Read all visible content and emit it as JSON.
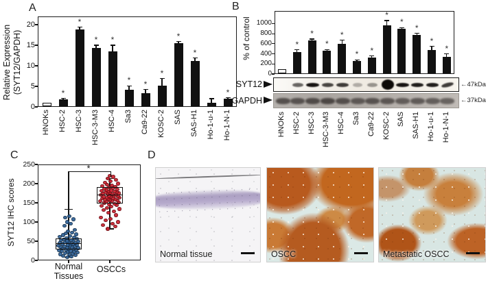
{
  "panels": {
    "a": "A",
    "b": "B",
    "c": "C",
    "d": "D"
  },
  "colors": {
    "bar": "#111111",
    "open_bar": "#ffffff",
    "normal_points": "#2e6096",
    "normal_points_border": "#16324f",
    "oscc_points": "#cc1f2d",
    "oscc_points_border": "#6e0e14"
  },
  "chart_data": [
    {
      "type": "bar",
      "panel": "A",
      "ylabel": "Relative Expression (SYT12/GAPDH)",
      "ylabel_line1": "Relative Expression",
      "ylabel_line2": "(SYT12/GAPDH)",
      "ylim": [
        0,
        22
      ],
      "yticks": [
        0,
        5,
        10,
        15,
        20
      ],
      "categories": [
        "HNOKs",
        "HSC-2",
        "HSC-3",
        "HSC-3-M3",
        "HSC-4",
        "Sa3",
        "Ca9-22",
        "KOSC-2",
        "SAS",
        "SAS-H1",
        "Ho-1-u-1",
        "Ho-1-N-1"
      ],
      "values": [
        1.0,
        1.9,
        18.9,
        14.3,
        13.5,
        4.1,
        3.3,
        5.1,
        15.5,
        11.2,
        1.0,
        2.0
      ],
      "errors": [
        0,
        0.15,
        0.5,
        0.7,
        1.5,
        1.0,
        0.9,
        1.8,
        0.4,
        0.7,
        1.0,
        0.2
      ],
      "significant": [
        false,
        true,
        true,
        true,
        true,
        true,
        true,
        true,
        true,
        true,
        false,
        true
      ],
      "sig_symbol": "*",
      "open_bar_index": 0,
      "grid": false
    },
    {
      "type": "bar",
      "panel": "B",
      "ylabel": "% of control",
      "ylim": [
        0,
        1250
      ],
      "yticks": [
        0,
        200,
        400,
        600,
        800,
        1000
      ],
      "categories": [
        "HNOKs",
        "HSC-2",
        "HSC-3",
        "HSC-3-M3",
        "HSC-4",
        "Sa3",
        "Ca9-22",
        "KOSC-2",
        "SAS",
        "SAS-H1",
        "Ho-1-u-1",
        "Ho-1-N-1"
      ],
      "values": [
        100,
        440,
        670,
        460,
        600,
        260,
        330,
        970,
        890,
        780,
        480,
        340
      ],
      "errors": [
        0,
        40,
        25,
        25,
        70,
        20,
        30,
        90,
        30,
        25,
        70,
        60
      ],
      "significant": [
        false,
        true,
        true,
        true,
        true,
        true,
        true,
        true,
        true,
        true,
        true,
        true
      ],
      "sig_symbol": "*",
      "open_bar_index": 0,
      "grid": false
    },
    {
      "type": "box",
      "panel": "C",
      "ylabel": "SYT12 IHC scores",
      "ylim": [
        0,
        250
      ],
      "yticks": [
        0,
        50,
        100,
        150,
        200,
        250
      ],
      "sig_symbol": "*",
      "groups": [
        {
          "label": "Normal Tissues",
          "label_line1": "Normal",
          "label_line2": "Tissues",
          "color": "#2e6096",
          "border": "#16324f",
          "box": {
            "q1": 28,
            "median": 44,
            "q3": 58,
            "whisker_low": 8,
            "whisker_high": 133
          },
          "points": [
            [
              -2,
              8
            ],
            [
              4,
              10
            ],
            [
              -8,
              12
            ],
            [
              10,
              14
            ],
            [
              1,
              15
            ],
            [
              -12,
              16
            ],
            [
              6,
              18
            ],
            [
              -5,
              19
            ],
            [
              13,
              20
            ],
            [
              -1,
              22
            ],
            [
              8,
              23
            ],
            [
              -10,
              24
            ],
            [
              3,
              25
            ],
            [
              -14,
              26
            ],
            [
              11,
              27
            ],
            [
              -4,
              28
            ],
            [
              7,
              29
            ],
            [
              0,
              30
            ],
            [
              -9,
              31
            ],
            [
              14,
              32
            ],
            [
              -2,
              33
            ],
            [
              5,
              34
            ],
            [
              -12,
              35
            ],
            [
              9,
              36
            ],
            [
              -6,
              37
            ],
            [
              2,
              38
            ],
            [
              -15,
              39
            ],
            [
              12,
              40
            ],
            [
              -1,
              41
            ],
            [
              6,
              42
            ],
            [
              -9,
              43
            ],
            [
              3,
              44
            ],
            [
              -13,
              45
            ],
            [
              10,
              46
            ],
            [
              0,
              47
            ],
            [
              -5,
              48
            ],
            [
              14,
              49
            ],
            [
              -2,
              50
            ],
            [
              7,
              51
            ],
            [
              -11,
              52
            ],
            [
              4,
              53
            ],
            [
              -7,
              55
            ],
            [
              12,
              56
            ],
            [
              -3,
              58
            ],
            [
              8,
              60
            ],
            [
              -13,
              62
            ],
            [
              2,
              64
            ],
            [
              -8,
              66
            ],
            [
              11,
              68
            ],
            [
              -4,
              70
            ],
            [
              5,
              73
            ],
            [
              -1,
              76
            ],
            [
              9,
              80
            ],
            [
              -6,
              90
            ],
            [
              3,
              95
            ],
            [
              -2,
              100
            ],
            [
              7,
              107
            ],
            [
              -5,
              112
            ],
            [
              1,
              115
            ]
          ]
        },
        {
          "label": "OSCCs",
          "label_line1": "OSCCs",
          "label_line2": "",
          "color": "#cc1f2d",
          "border": "#6e0e14",
          "box": {
            "q1": 148,
            "median": 170,
            "q3": 191,
            "whisker_low": 82,
            "whisker_high": 213
          },
          "points": [
            [
              -3,
              82
            ],
            [
              8,
              88
            ],
            [
              -10,
              92
            ],
            [
              4,
              96
            ],
            [
              12,
              100
            ],
            [
              -6,
              104
            ],
            [
              1,
              108
            ],
            [
              -13,
              112
            ],
            [
              9,
              118
            ],
            [
              -2,
              124
            ],
            [
              6,
              128
            ],
            [
              -9,
              131
            ],
            [
              14,
              134
            ],
            [
              -4,
              137
            ],
            [
              2,
              140
            ],
            [
              -12,
              142
            ],
            [
              10,
              144
            ],
            [
              -1,
              146
            ],
            [
              7,
              148
            ],
            [
              -8,
              150
            ],
            [
              13,
              151
            ],
            [
              -5,
              152
            ],
            [
              3,
              154
            ],
            [
              -14,
              155
            ],
            [
              11,
              156
            ],
            [
              0,
              157
            ],
            [
              -7,
              158
            ],
            [
              8,
              159
            ],
            [
              -2,
              160
            ],
            [
              5,
              161
            ],
            [
              -11,
              162
            ],
            [
              14,
              163
            ],
            [
              -4,
              164
            ],
            [
              1,
              165
            ],
            [
              -9,
              166
            ],
            [
              12,
              167
            ],
            [
              -1,
              168
            ],
            [
              6,
              169
            ],
            [
              -13,
              170
            ],
            [
              9,
              171
            ],
            [
              -3,
              172
            ],
            [
              4,
              173
            ],
            [
              -10,
              174
            ],
            [
              13,
              175
            ],
            [
              0,
              176
            ],
            [
              -6,
              177
            ],
            [
              10,
              178
            ],
            [
              -2,
              179
            ],
            [
              7,
              180
            ],
            [
              -12,
              181
            ],
            [
              2,
              182
            ],
            [
              -5,
              184
            ],
            [
              11,
              185
            ],
            [
              -8,
              186
            ],
            [
              5,
              188
            ],
            [
              -1,
              190
            ],
            [
              8,
              192
            ],
            [
              -11,
              194
            ],
            [
              3,
              196
            ],
            [
              -4,
              198
            ],
            [
              12,
              200
            ],
            [
              -7,
              203
            ],
            [
              1,
              206
            ],
            [
              9,
              210
            ],
            [
              -3,
              214
            ],
            [
              5,
              218
            ],
            [
              0,
              220
            ]
          ]
        }
      ]
    }
  ],
  "panel_b_blots": {
    "rows": [
      {
        "label": "SYT12",
        "marker": "←47kDa",
        "band_intensities": [
          0.0,
          0.55,
          0.95,
          0.7,
          0.75,
          0.18,
          0.3,
          1.0,
          0.95,
          0.9,
          0.9,
          0.75
        ]
      },
      {
        "label": "GAPDH",
        "marker": "←37kDa",
        "band_intensities": [
          0.8,
          0.75,
          0.85,
          0.9,
          0.8,
          0.65,
          0.75,
          0.7,
          0.6,
          0.65,
          0.6,
          0.55
        ]
      }
    ]
  },
  "panel_d": {
    "images": [
      {
        "label": "Normal tissue"
      },
      {
        "label": "OSCC"
      },
      {
        "label": "Metastatic OSCC"
      }
    ]
  }
}
